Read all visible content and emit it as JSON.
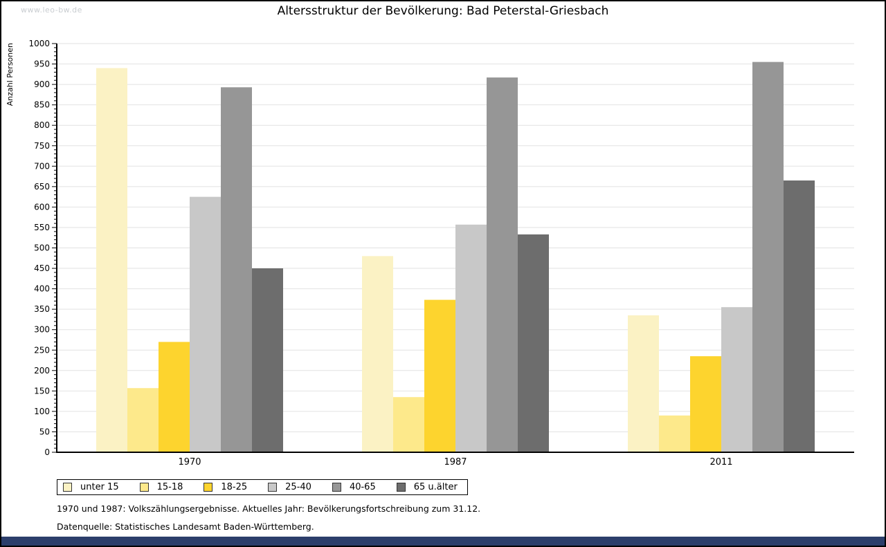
{
  "page": {
    "watermark": "www.leo-bw.de",
    "title": "Altersstruktur der Bevölkerung: Bad Peterstal-Griesbach",
    "footnote1": "1970 und 1987: Volkszählungsergebnisse. Aktuelles Jahr: Bevölkerungsfortschreibung zum 31.12.",
    "footnote2": "Datenquelle: Statistisches Landesamt Baden-Württemberg.",
    "footer_bar_color": "#2c3e6b"
  },
  "chart_data": {
    "type": "bar",
    "title": "Altersstruktur der Bevölkerung: Bad Peterstal-Griesbach",
    "xlabel": "",
    "ylabel": "Anzahl Personen",
    "categories": [
      "1970",
      "1987",
      "2011"
    ],
    "series": [
      {
        "name": "unter 15",
        "color": "#fbf2c4",
        "values": [
          940,
          480,
          335
        ]
      },
      {
        "name": "15-18",
        "color": "#fde98b",
        "values": [
          157,
          135,
          90
        ]
      },
      {
        "name": "18-25",
        "color": "#fdd42e",
        "values": [
          270,
          373,
          235
        ]
      },
      {
        "name": "25-40",
        "color": "#c8c8c8",
        "values": [
          625,
          557,
          355
        ]
      },
      {
        "name": "40-65",
        "color": "#969696",
        "values": [
          893,
          917,
          955
        ]
      },
      {
        "name": "65 u.älter",
        "color": "#6d6d6d",
        "values": [
          450,
          533,
          665
        ]
      }
    ],
    "ylim": [
      0,
      1000
    ],
    "ytick_major": 50,
    "ytick_minor": 10,
    "grid": true,
    "gridline_color": "#e2e2e2",
    "axis_color": "#000000",
    "legend_position": "bottom"
  }
}
